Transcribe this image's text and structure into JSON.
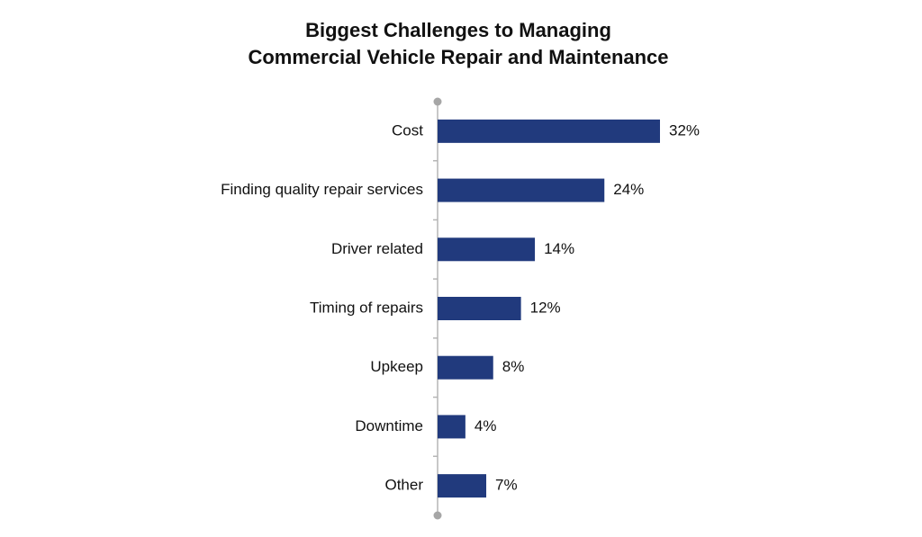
{
  "chart_data": {
    "type": "hbar",
    "title": [
      "Biggest Challenges to Managing",
      "Commercial Vehicle Repair and Maintenance"
    ],
    "categories": [
      "Cost",
      "Finding quality repair services",
      "Driver related",
      "Timing of repairs",
      "Upkeep",
      "Downtime",
      "Other"
    ],
    "values": [
      32,
      24,
      14,
      12,
      8,
      4,
      7
    ],
    "value_labels": [
      "32%",
      "24%",
      "14%",
      "12%",
      "8%",
      "4%",
      "7%"
    ],
    "color": "#213a7d"
  }
}
